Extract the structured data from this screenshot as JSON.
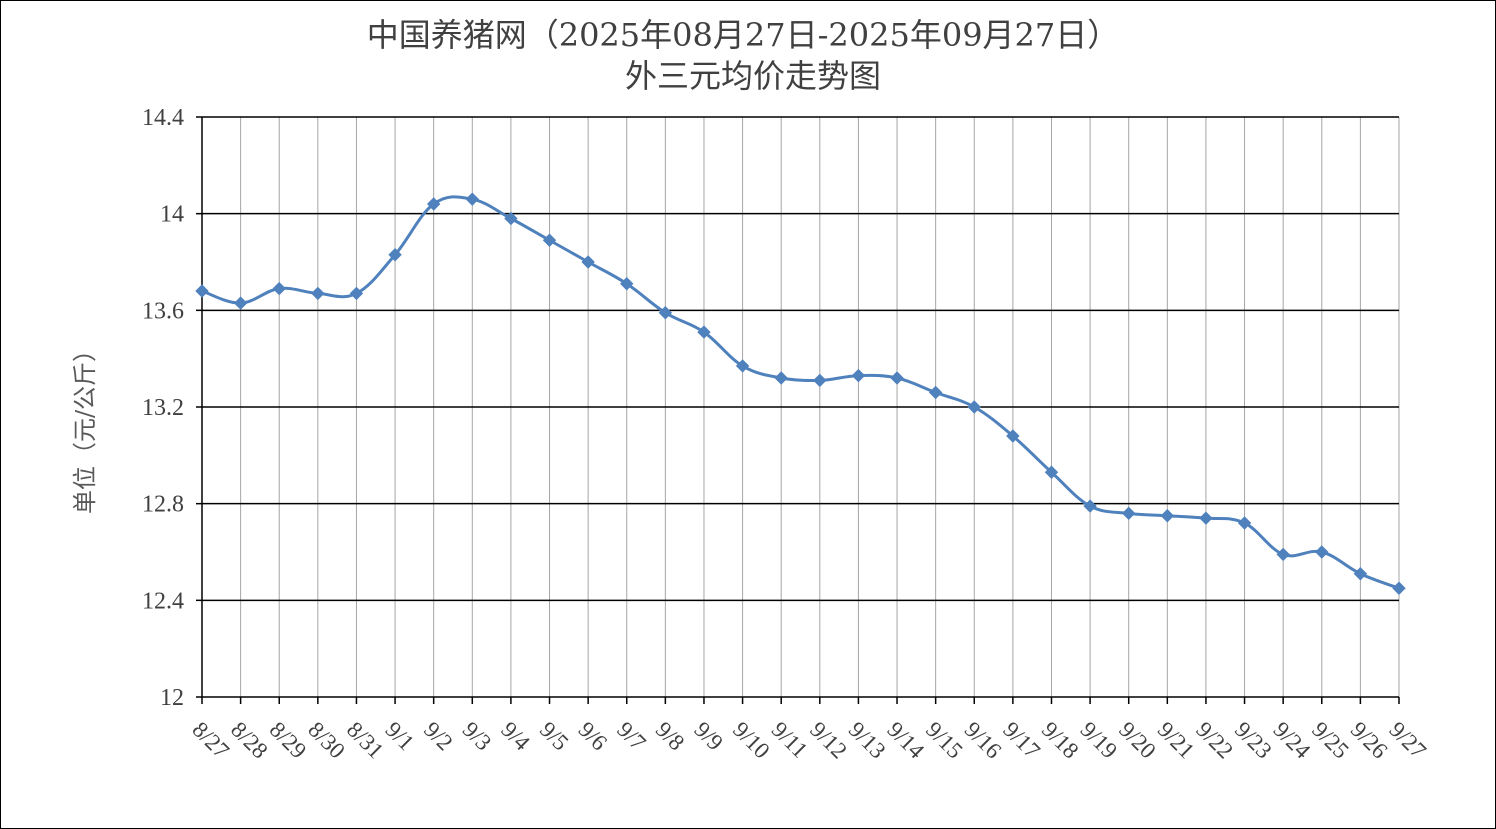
{
  "chart_data": {
    "type": "line",
    "title": "中国养猪网（2025年08月27日-2025年09月27日）",
    "subtitle": "外三元均价走势图",
    "ylabel": "单位（元/公斤）",
    "xlabel": "",
    "ylim": [
      12,
      14.4
    ],
    "yticks": [
      "12",
      "12.4",
      "12.8",
      "13.2",
      "13.6",
      "14",
      "14.4"
    ],
    "grid": true,
    "line_color": "#4F81BD",
    "categories": [
      "8/27",
      "8/28",
      "8/29",
      "8/30",
      "8/31",
      "9/1",
      "9/2",
      "9/3",
      "9/4",
      "9/5",
      "9/6",
      "9/7",
      "9/8",
      "9/9",
      "9/10",
      "9/11",
      "9/12",
      "9/13",
      "9/14",
      "9/15",
      "9/16",
      "9/17",
      "9/18",
      "9/19",
      "9/20",
      "9/21",
      "9/22",
      "9/23",
      "9/24",
      "9/25",
      "9/26",
      "9/27"
    ],
    "values": [
      13.68,
      13.63,
      13.69,
      13.67,
      13.67,
      13.83,
      14.04,
      14.06,
      13.98,
      13.89,
      13.8,
      13.71,
      13.59,
      13.51,
      13.37,
      13.32,
      13.31,
      13.33,
      13.32,
      13.26,
      13.2,
      13.08,
      12.93,
      12.79,
      12.76,
      12.75,
      12.74,
      12.72,
      12.59,
      12.6,
      12.51,
      12.45
    ]
  }
}
